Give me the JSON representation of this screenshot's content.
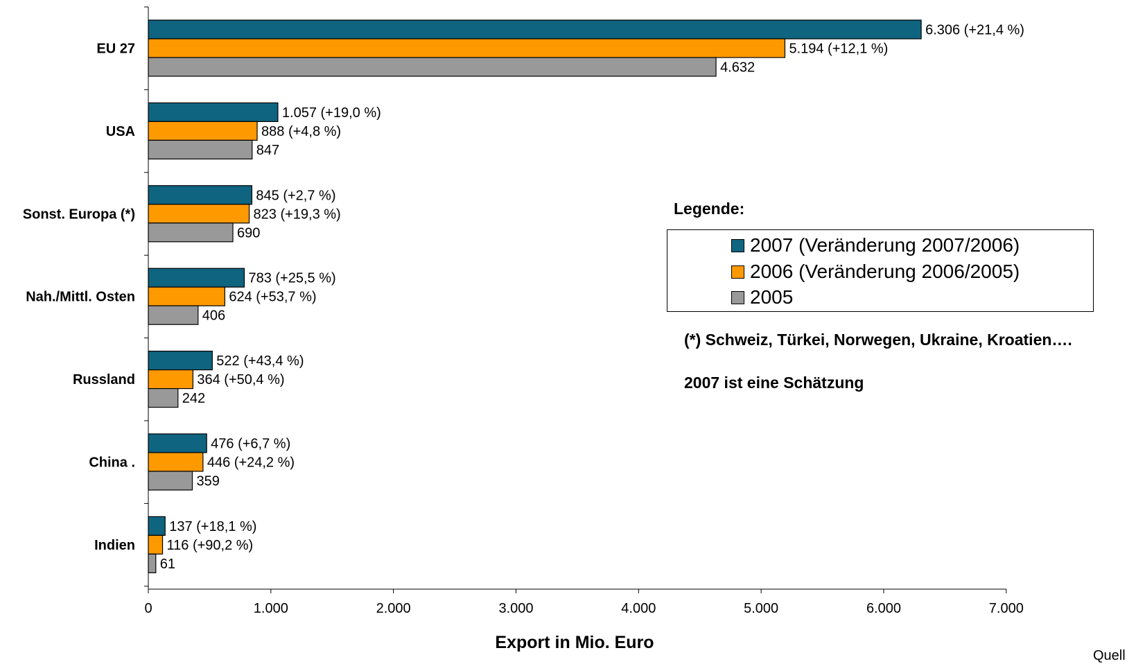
{
  "chart_data": {
    "type": "bar",
    "orientation": "horizontal",
    "categories": [
      "EU 27",
      "USA",
      "Sonst. Europa (*)",
      "Nah./Mittl. Osten",
      "Russland",
      "China      .",
      "Indien"
    ],
    "series": [
      {
        "name": "2007 (Veränderung 2007/2006)",
        "color": "#0f6480",
        "values": [
          6306,
          1057,
          845,
          783,
          522,
          476,
          137
        ],
        "labels": [
          "6.306  (+21,4 %)",
          "1.057  (+19,0 %)",
          "845  (+2,7 %)",
          "783  (+25,5 %)",
          "522  (+43,4 %)",
          "476  (+6,7 %)",
          "137  (+18,1 %)"
        ]
      },
      {
        "name": "2006 (Veränderung 2006/2005)",
        "color": "#ff9900",
        "values": [
          5194,
          888,
          823,
          624,
          364,
          446,
          116
        ],
        "labels": [
          "5.194  (+12,1 %)",
          "888  (+4,8 %)",
          "823  (+19,3 %)",
          "624  (+53,7 %)",
          "364  (+50,4 %)",
          "446  (+24,2 %)",
          "116  (+90,2 %)"
        ]
      },
      {
        "name": "2005",
        "color": "#999999",
        "values": [
          4632,
          847,
          690,
          406,
          242,
          359,
          61
        ],
        "labels": [
          "4.632",
          "847",
          "690",
          "406",
          "242",
          "359",
          "61"
        ]
      }
    ],
    "xlabel": "Export in Mio. Euro",
    "xlim": [
      0,
      7000
    ],
    "xticks": [
      0,
      1000,
      2000,
      3000,
      4000,
      5000,
      6000,
      7000
    ],
    "xtick_labels": [
      "0",
      "1.000",
      "2.000",
      "3.000",
      "4.000",
      "5.000",
      "6.000",
      "7.000"
    ],
    "grid": false,
    "legend_placement": "right"
  },
  "legend": {
    "title": "Legende:",
    "items": [
      "2007 (Veränderung 2007/2006)",
      "2006 (Veränderung 2006/2005)",
      "2005"
    ]
  },
  "notes": {
    "footnote": "(*) Schweiz, Türkei, Norwegen, Ukraine, Kroatien….",
    "estimate": "2007 ist eine Schätzung"
  },
  "source": "Quell"
}
